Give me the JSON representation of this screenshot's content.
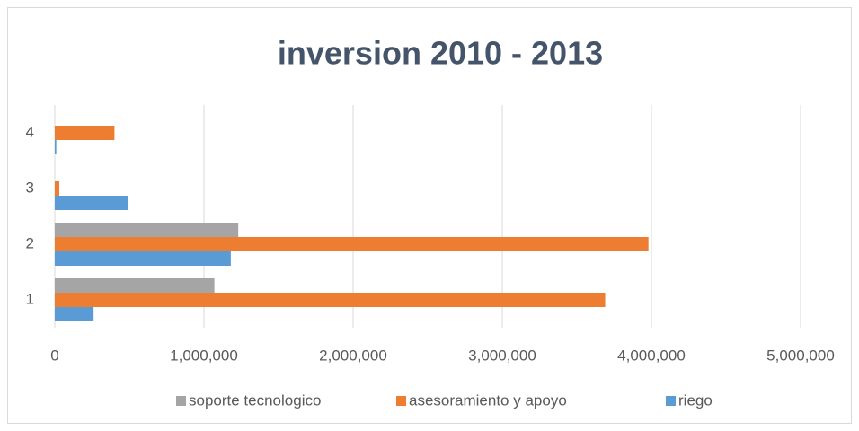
{
  "chart_data": {
    "type": "hbar",
    "title": "inversion 2010 - 2013",
    "categories": [
      "1",
      "2",
      "3",
      "4"
    ],
    "series": [
      {
        "name": "riego",
        "color": "#5b9bd5",
        "values": [
          260000,
          1180000,
          490000,
          10000
        ]
      },
      {
        "name": "asesoramiento y apoyo",
        "color": "#ed7d31",
        "values": [
          3690000,
          3980000,
          30000,
          400000
        ]
      },
      {
        "name": "soporte tecnologico",
        "color": "#a5a5a5",
        "values": [
          1070000,
          1230000,
          0,
          0
        ]
      }
    ],
    "xlim": [
      0,
      5000000
    ],
    "xticks": [
      0,
      {
        "value": 1000000,
        "label": "1,000,000"
      },
      {
        "value": 2000000,
        "label": "2,000,000"
      },
      {
        "value": 3000000,
        "label": "3,000,000"
      },
      {
        "value": 4000000,
        "label": "4,000,000"
      },
      {
        "value": 5000000,
        "label": "5,000,000"
      }
    ],
    "grid": true,
    "legend": "bottom"
  }
}
